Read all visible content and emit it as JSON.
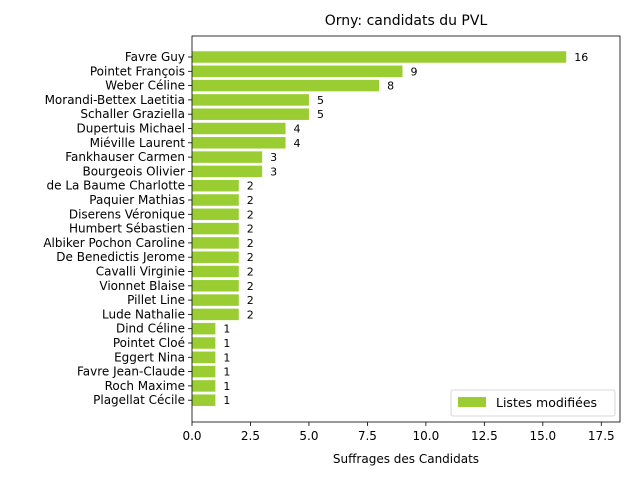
{
  "chart_data": {
    "type": "bar",
    "orientation": "horizontal",
    "title": "Orny: candidats du PVL",
    "xlabel": "Suffrages des Candidats",
    "ylabel": "",
    "xlim": [
      0,
      18.3
    ],
    "xticks": [
      "0.0",
      "2.5",
      "5.0",
      "7.5",
      "10.0",
      "12.5",
      "15.0",
      "17.5"
    ],
    "xtick_values": [
      0,
      2.5,
      5,
      7.5,
      10,
      12.5,
      15,
      17.5
    ],
    "grid": false,
    "legend_position": "lower-right",
    "bar_color": "#9acd32",
    "categories": [
      "Favre Guy",
      "Pointet François",
      "Weber Céline",
      "Morandi-Bettex Laetitia",
      "Schaller Graziella",
      "Dupertuis Michael",
      "Miéville Laurent",
      "Fankhauser Carmen",
      "Bourgeois Olivier",
      "de La Baume Charlotte",
      "Paquier Mathias",
      "Diserens Véronique",
      "Humbert Sébastien",
      "Albiker Pochon Caroline",
      "De Benedictis Jerome",
      "Cavalli Virginie",
      "Vionnet Blaise",
      "Pillet Line",
      "Lude Nathalie",
      "Dind Céline",
      "Pointet Cloé",
      "Eggert Nina",
      "Favre Jean-Claude",
      "Roch Maxime",
      "Plagellat Cécile"
    ],
    "series": [
      {
        "name": "Listes modifiées",
        "values": [
          16,
          9,
          8,
          5,
          5,
          4,
          4,
          3,
          3,
          2,
          2,
          2,
          2,
          2,
          2,
          2,
          2,
          2,
          2,
          1,
          1,
          1,
          1,
          1,
          1
        ]
      }
    ]
  }
}
